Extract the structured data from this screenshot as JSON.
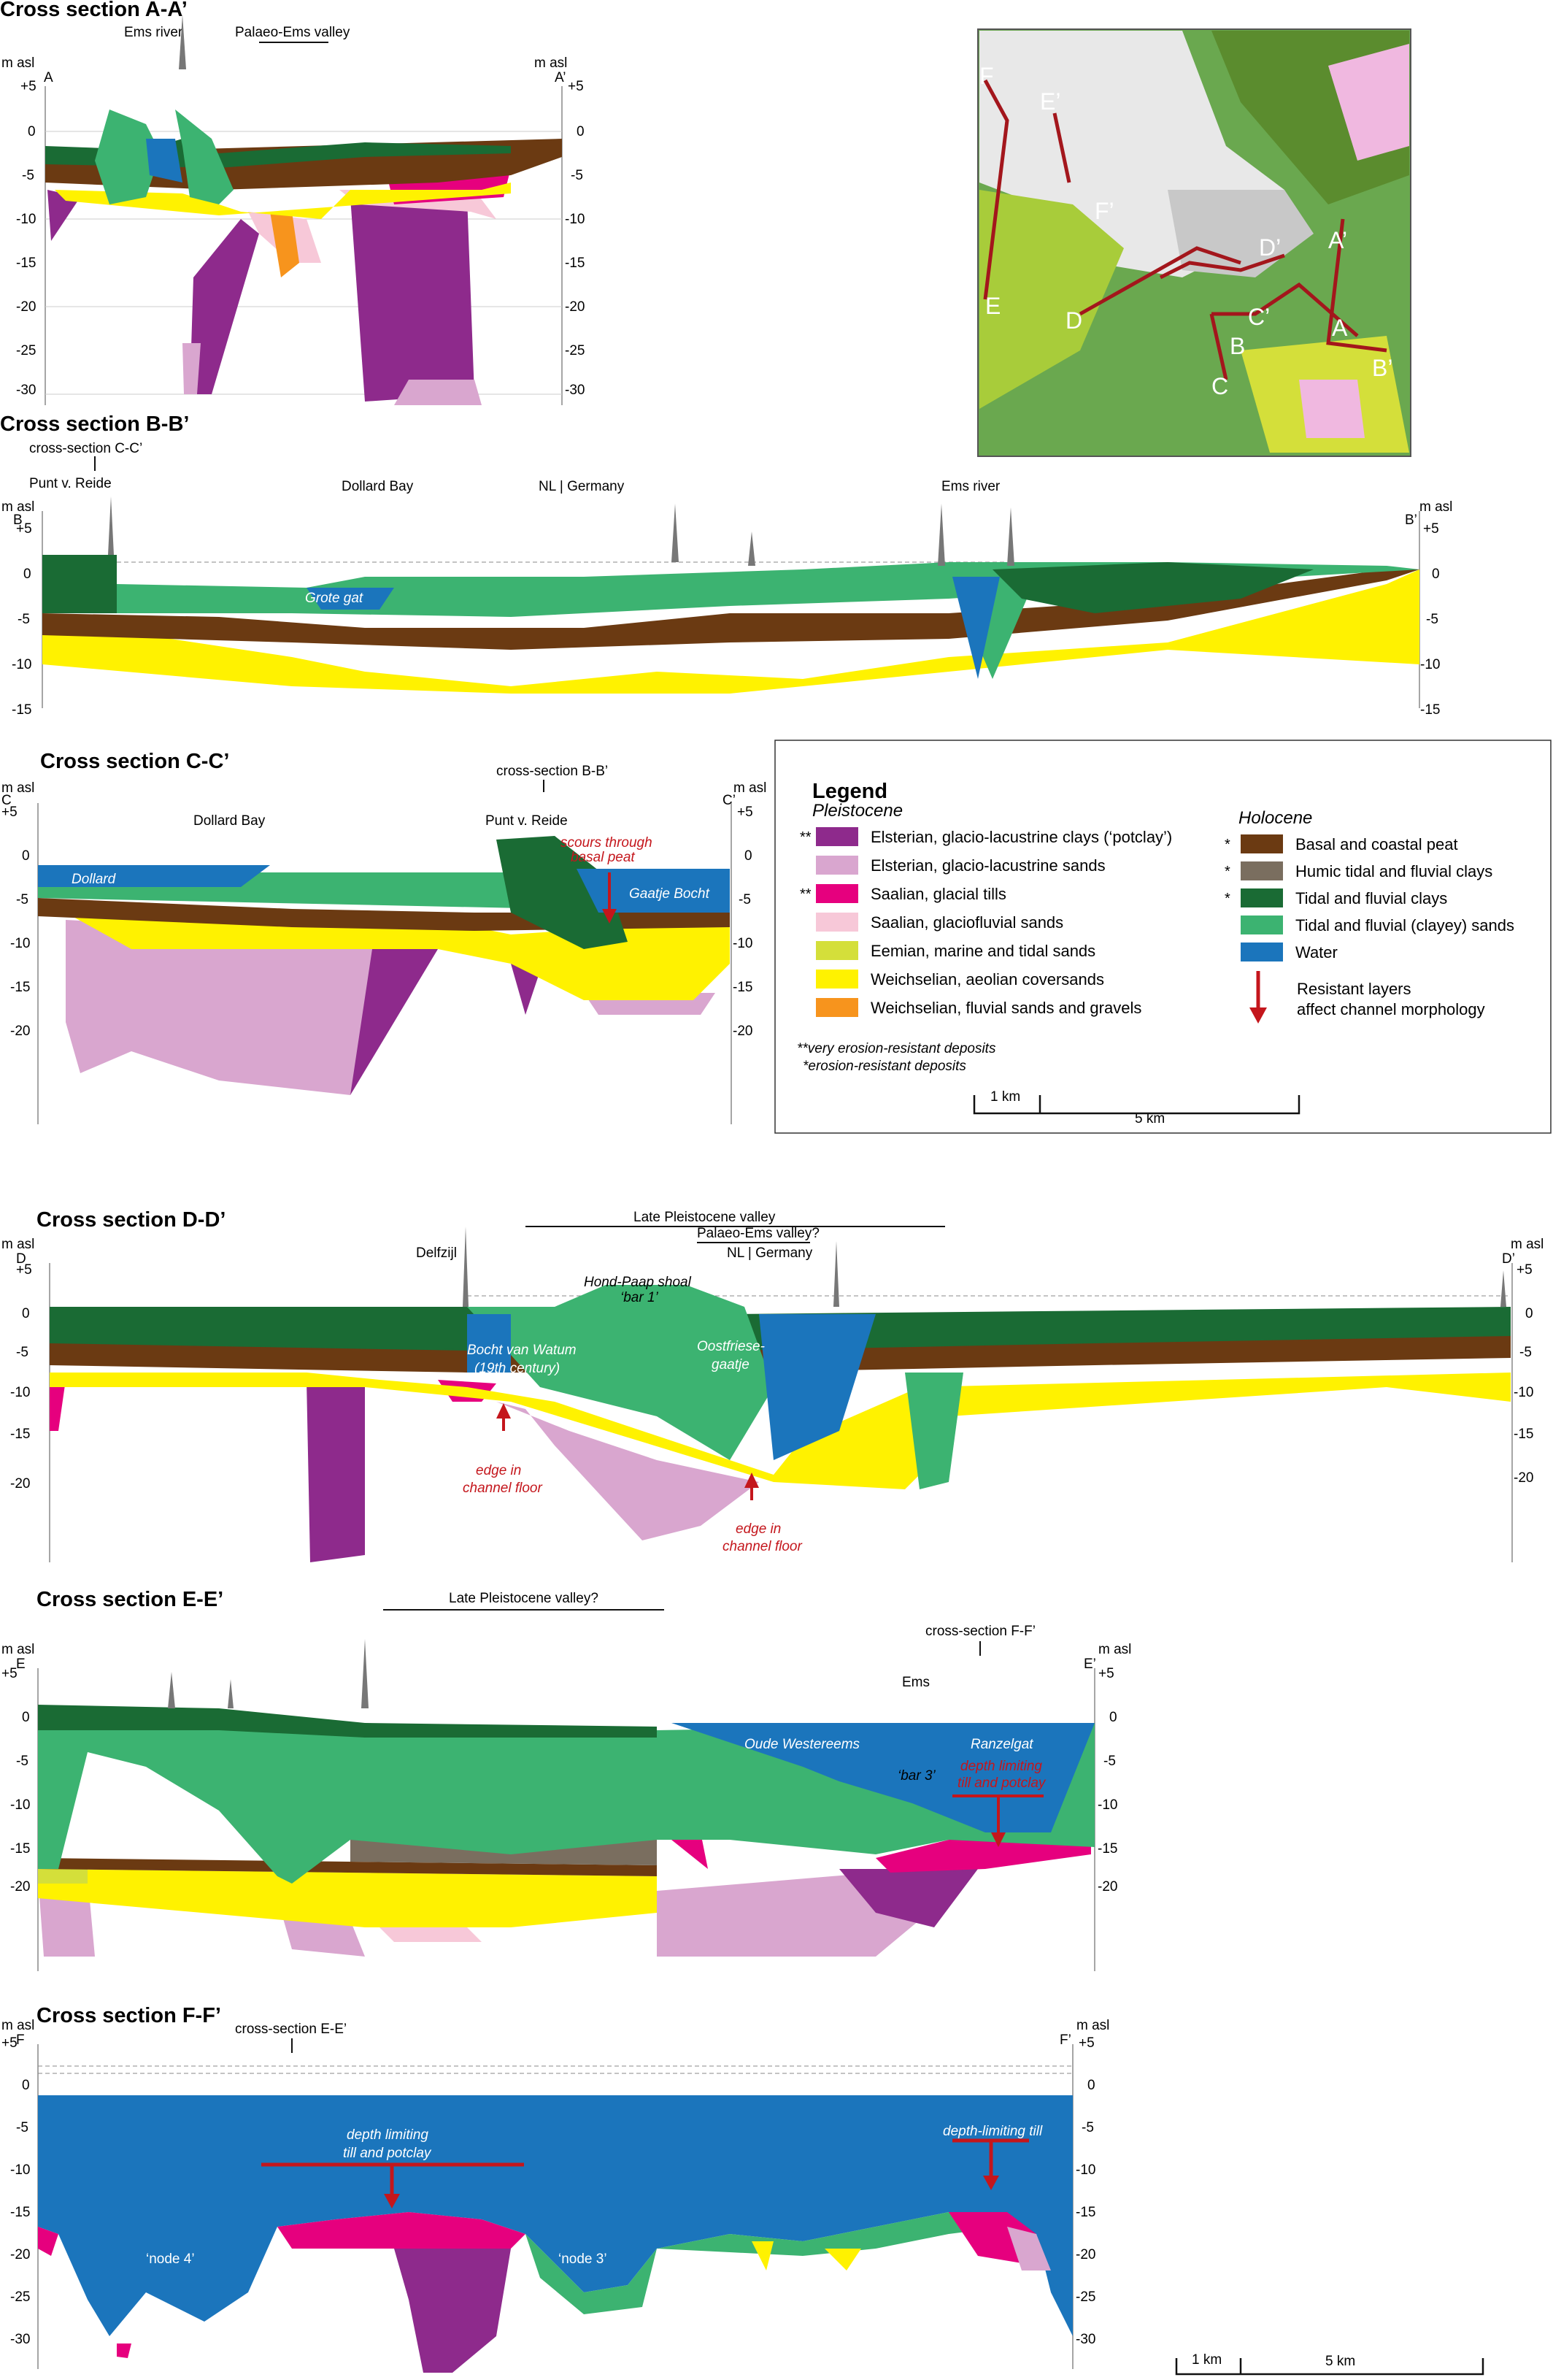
{
  "colors": {
    "elsterian_clay": "#8e2a8c",
    "elsterian_sand": "#d9a6cf",
    "saalian_till": "#e6007e",
    "saalian_glaciofluvial": "#f7c8d8",
    "eemian": "#d4df3a",
    "weichselian_aeolian": "#fff200",
    "weichselian_fluvial": "#f7941d",
    "basal_peat": "#6b3a12",
    "humic_clay": "#7a6e5f",
    "tidal_clay": "#1a6b34",
    "tidal_sand": "#3cb371",
    "water": "#1b75bc",
    "resistant_arrow": "#c4161c",
    "map_bg": "#6aa84f"
  },
  "sections": {
    "aa": {
      "title": "Cross section A-A’",
      "start": "A",
      "end": "A’",
      "unit_left": "m asl",
      "unit_right": "m asl",
      "plus5": "+5",
      "ticks": [
        "0",
        "-5",
        "-10",
        "-15",
        "-20",
        "-25",
        "-30"
      ],
      "labels": {
        "ems_river": "Ems river",
        "palaeo_ems": "Palaeo-Ems valley"
      }
    },
    "bb": {
      "title": "Cross section B-B’",
      "start": "B",
      "end": "B’",
      "unit_left": "m asl",
      "unit_right": "m asl",
      "plus5": "+5",
      "ticks": [
        "0",
        "-5",
        "-10",
        "-15"
      ],
      "labels": {
        "cross_cc": "cross-section C-C’",
        "punt": "Punt v. Reide",
        "dollard_bay": "Dollard Bay",
        "nl_germany": "NL | Germany",
        "ems_river": "Ems river",
        "grote_gat": "Grote gat"
      }
    },
    "cc": {
      "title": "Cross section C-C’",
      "start": "C",
      "end": "C’",
      "unit_left": "m asl",
      "unit_right": "m asl",
      "plus5": "+5",
      "ticks": [
        "0",
        "-5",
        "-10",
        "-15",
        "-20"
      ],
      "labels": {
        "cross_bb": "cross-section B-B’",
        "dollard_bay": "Dollard Bay",
        "punt": "Punt v. Reide",
        "dollard": "Dollard",
        "gaatje": "Gaatje Bocht",
        "scours1": "scours through",
        "scours2": "basal peat"
      }
    },
    "dd": {
      "title": "Cross section D-D’",
      "start": "D",
      "end": "D’",
      "unit_left": "m asl",
      "unit_right": "m asl",
      "plus5": "+5",
      "ticks": [
        "0",
        "-5",
        "-10",
        "-15",
        "-20"
      ],
      "labels": {
        "late_valley": "Late Pleistocene valley",
        "palaeo_ems": "Palaeo-Ems valley?",
        "nl_germany": "NL | Germany",
        "delfzijl": "Delfzijl",
        "hond_paap": "Hond-Paap shoal",
        "bar1": "‘bar 1’",
        "bocht1": "Bocht van Watum",
        "bocht2": "(19th century)",
        "oost1": "Oostfriese-",
        "oost2": "gaatje",
        "edge1a": "edge in",
        "edge1b": "channel floor",
        "edge2a": "edge in",
        "edge2b": "channel floor"
      }
    },
    "ee": {
      "title": "Cross section E-E’",
      "start": "E",
      "end": "E’",
      "unit_left": "m asl",
      "unit_right": "m asl",
      "plus5": "+5",
      "ticks": [
        "0",
        "-5",
        "-10",
        "-15",
        "-20"
      ],
      "labels": {
        "late_valley": "Late Pleistocene valley?",
        "cross_ff": "cross-section F-F’",
        "ems": "Ems",
        "oude": "Oude Westereems",
        "ranzel": "Ranzelgat",
        "bar3": "‘bar 3’",
        "depth1": "depth limiting",
        "depth2": "till and potclay"
      }
    },
    "ff": {
      "title": "Cross section F-F’",
      "start": "F",
      "end": "F’",
      "unit_left": "m asl",
      "unit_right": "m asl",
      "plus5": "+5",
      "ticks": [
        "0",
        "-5",
        "-10",
        "-15",
        "-20",
        "-25",
        "-30"
      ],
      "labels": {
        "cross_ee": "cross-section E-E’",
        "depth1": "depth limiting",
        "depth2": "till and potclay",
        "depth_till": "depth-limiting till",
        "node4": "‘node 4’",
        "node3": "‘node 3’"
      }
    }
  },
  "legend": {
    "title": "Legend",
    "pleistocene": "Pleistocene",
    "holocene": "Holocene",
    "pleistocene_items": [
      {
        "mark": "**",
        "label": "Elsterian, glacio-lacustrine clays (‘potclay’)",
        "color": "#8e2a8c"
      },
      {
        "mark": "",
        "label": "Elsterian, glacio-lacustrine sands",
        "color": "#d9a6cf"
      },
      {
        "mark": "**",
        "label": "Saalian, glacial tills",
        "color": "#e6007e"
      },
      {
        "mark": "",
        "label": "Saalian, glaciofluvial sands",
        "color": "#f7c8d8"
      },
      {
        "mark": "",
        "label": "Eemian, marine and tidal sands",
        "color": "#d4df3a"
      },
      {
        "mark": "",
        "label": "Weichselian, aeolian coversands",
        "color": "#fff200"
      },
      {
        "mark": "",
        "label": "Weichselian, fluvial sands and gravels",
        "color": "#f7941d"
      }
    ],
    "holocene_items": [
      {
        "mark": "*",
        "label": "Basal and coastal peat",
        "color": "#6b3a12"
      },
      {
        "mark": "*",
        "label": "Humic tidal and fluvial clays",
        "color": "#7a6e5f"
      },
      {
        "mark": "*",
        "label": "Tidal and fluvial clays",
        "color": "#1a6b34"
      },
      {
        "mark": "",
        "label": "Tidal and fluvial (clayey) sands",
        "color": "#3cb371"
      },
      {
        "mark": "",
        "label": "Water",
        "color": "#1b75bc"
      }
    ],
    "arrow_label_1": "Resistant layers",
    "arrow_label_2": "affect channel morphology",
    "note_1": "**very erosion-resistant deposits",
    "note_2": "*erosion-resistant deposits",
    "scale_small": "1 km",
    "scale_large": "5 km"
  },
  "map": {
    "labels": [
      "F",
      "E’",
      "F’",
      "D’",
      "A’",
      "E",
      "D",
      "C’",
      "B",
      "A",
      "B’",
      "C"
    ]
  },
  "bottom_scale": {
    "small": "1 km",
    "large": "5 km"
  }
}
